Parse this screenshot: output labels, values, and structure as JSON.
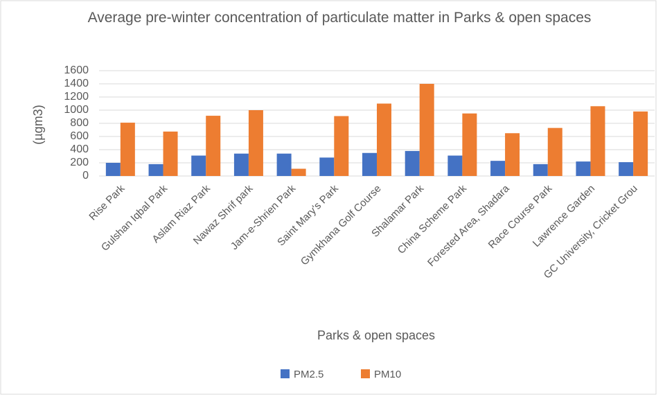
{
  "chart_data": {
    "type": "bar",
    "title": "Average pre-winter concentration of particulate matter in Parks & open spaces",
    "x_label": "Parks & open spaces",
    "y_label": "(µgm3)",
    "categories": [
      "Rise Park",
      "Gulshan Iqbal Park",
      "Aslam Riaz Park",
      "Nawaz Shrif park",
      "Jam-e-Shrien Park",
      "Saint Mary's Park",
      "Gymkhana Golf Course",
      "Shalamar Park",
      "China Scheme Park",
      "Forested Area, Shadara",
      "Race Course Park",
      "Lawrence Garden",
      "GC University, Cricket Grou"
    ],
    "series": [
      {
        "name": "PM2.5",
        "color": "#4472c4",
        "values": [
          200,
          180,
          310,
          340,
          340,
          280,
          350,
          380,
          310,
          230,
          180,
          220,
          210
        ]
      },
      {
        "name": "PM10",
        "color": "#ed7d31",
        "values": [
          810,
          675,
          915,
          1000,
          110,
          910,
          1100,
          1400,
          950,
          650,
          730,
          1060,
          980
        ]
      }
    ],
    "ylim": [
      0,
      1600
    ],
    "yticks": [
      0,
      200,
      400,
      600,
      800,
      1000,
      1200,
      1400,
      1600
    ],
    "grid": true,
    "legend": "bottom"
  }
}
